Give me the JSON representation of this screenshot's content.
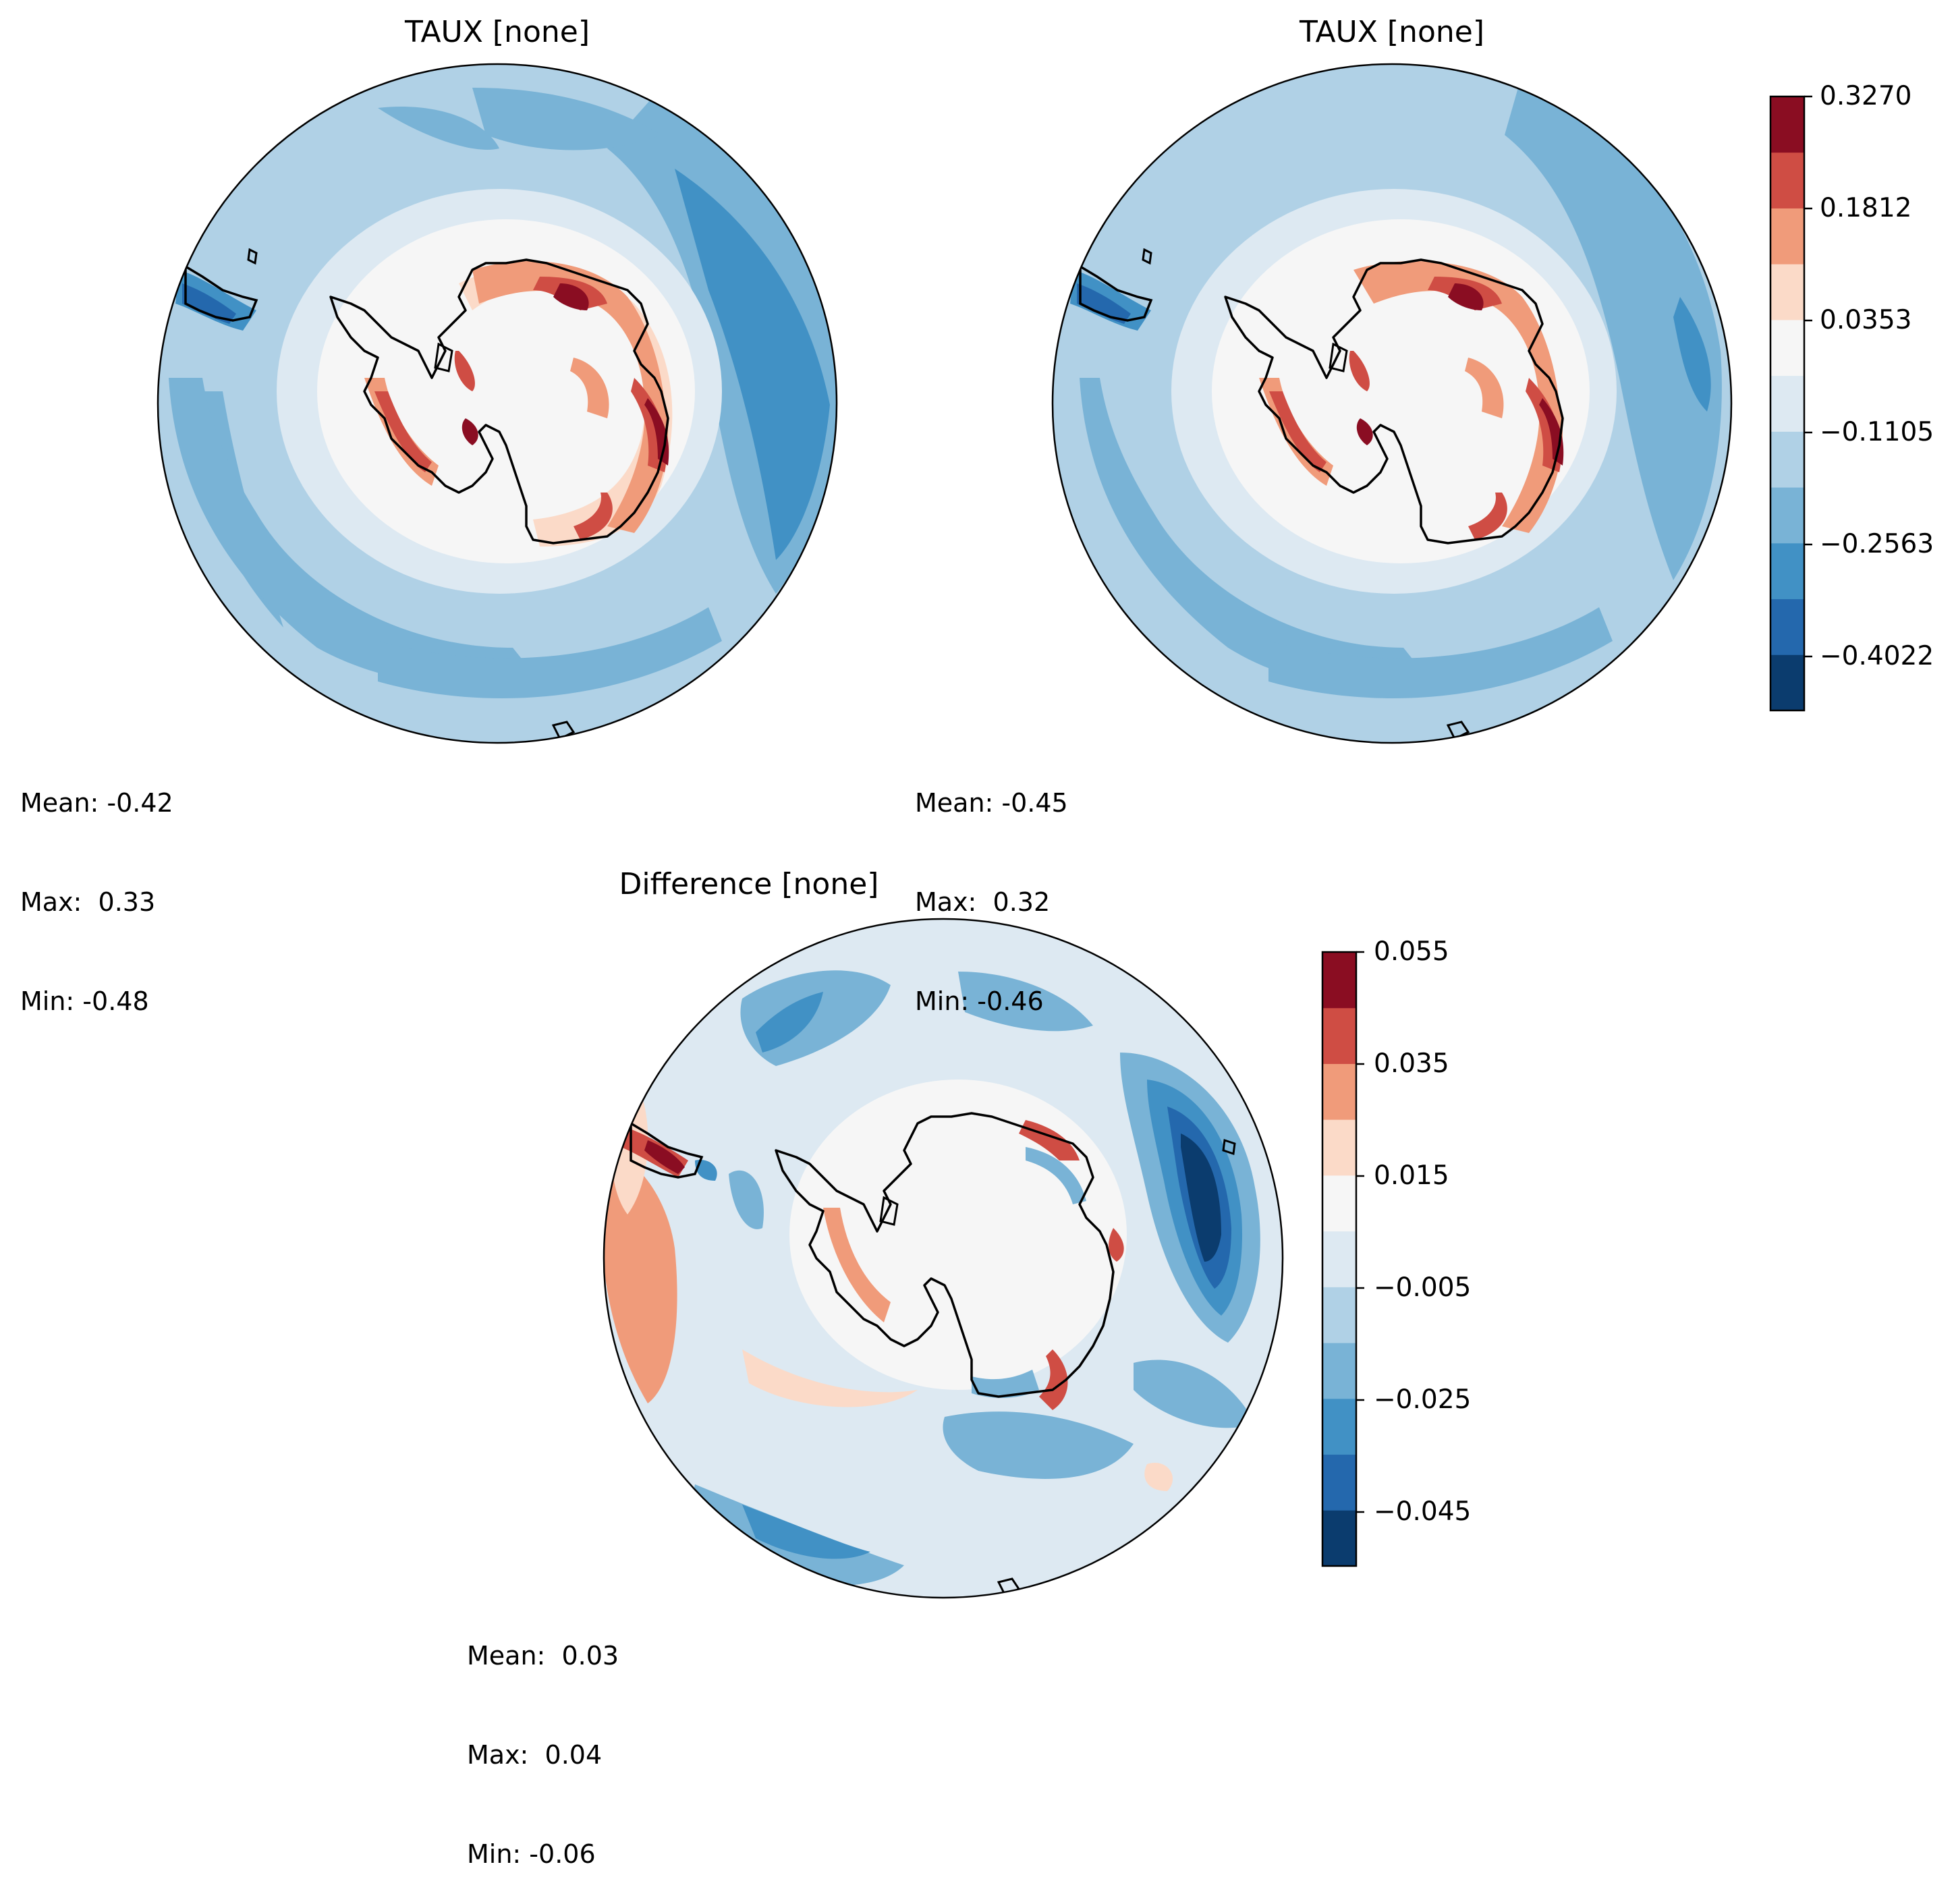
{
  "panels": [
    {
      "title": "TAUX [none]",
      "stats": {
        "mean": "Mean: -0.42",
        "max": "Max:  0.33",
        "min": "Min: -0.48"
      }
    },
    {
      "title": "TAUX [none]",
      "stats": {
        "mean": "Mean: -0.45",
        "max": "Max:  0.32",
        "min": "Min: -0.46"
      }
    },
    {
      "title": "Difference [none]",
      "stats": {
        "mean": "Mean:  0.03",
        "max": "Max:  0.04",
        "min": "Min: -0.06"
      }
    }
  ],
  "colorbars": [
    {
      "ticks": [
        "0.3270",
        "0.1812",
        "0.0353",
        "−0.1105",
        "−0.2563",
        "−0.4022"
      ],
      "range": [
        -0.48,
        0.327
      ]
    },
    {
      "ticks": [
        "0.055",
        "0.035",
        "0.015",
        "−0.005",
        "−0.025",
        "−0.045"
      ],
      "range": [
        -0.055,
        0.055
      ]
    }
  ],
  "colormap": {
    "name": "RdBu_r",
    "levels": [
      "#0b3c6e",
      "#2468ad",
      "#4191c5",
      "#79b3d6",
      "#b0d1e6",
      "#dde9f2",
      "#f6f6f6",
      "#fbdac8",
      "#f09b7a",
      "#cf4d44",
      "#8a0d22"
    ]
  },
  "projection": "south-polar-stereographic"
}
